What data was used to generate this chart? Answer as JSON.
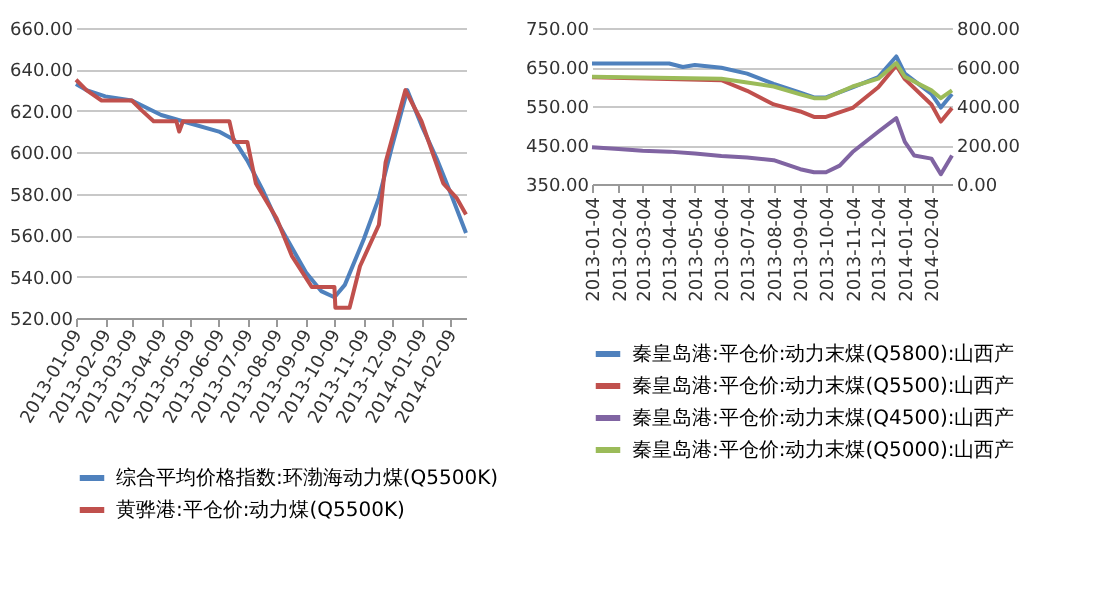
{
  "chart_data": [
    {
      "type": "line",
      "xlim": [
        "2013-01-09",
        "2014-02-25"
      ],
      "xticks": [
        "2013-01-09",
        "2013-02-09",
        "2013-03-09",
        "2013-04-09",
        "2013-05-09",
        "2013-06-09",
        "2013-07-09",
        "2013-08-09",
        "2013-09-09",
        "2013-10-09",
        "2013-11-09",
        "2013-12-09",
        "2014-01-09",
        "2014-02-09"
      ],
      "ylim": [
        520,
        660
      ],
      "yticks": [
        {
          "value": 520,
          "label": "520.00"
        },
        {
          "value": 540,
          "label": "540.00"
        },
        {
          "value": 560,
          "label": "560.00"
        },
        {
          "value": 580,
          "label": "580.00"
        },
        {
          "value": 600,
          "label": "600.00"
        },
        {
          "value": 620,
          "label": "620.00"
        },
        {
          "value": 640,
          "label": "640.00"
        },
        {
          "value": 660,
          "label": "660.00"
        }
      ],
      "grid": "y",
      "legend": "bottom",
      "series": [
        {
          "name": "综合平均价格指数:环渤海动力煤(Q5500K)",
          "color": "#4f81bd",
          "x": [
            "2013-01-09",
            "2013-01-20",
            "2013-02-09",
            "2013-03-09",
            "2013-04-09",
            "2013-05-09",
            "2013-06-09",
            "2013-06-25",
            "2013-07-09",
            "2013-07-25",
            "2013-08-09",
            "2013-08-25",
            "2013-09-09",
            "2013-09-25",
            "2013-10-09",
            "2013-10-20",
            "2013-11-09",
            "2013-11-25",
            "2013-12-09",
            "2013-12-25",
            "2014-01-09",
            "2014-01-25",
            "2014-02-09",
            "2014-02-25"
          ],
          "values": [
            633,
            630,
            627,
            625,
            618,
            614,
            610,
            606,
            596,
            582,
            567,
            554,
            542,
            533,
            530,
            536,
            558,
            578,
            603,
            630,
            613,
            597,
            580,
            561
          ]
        },
        {
          "name": "黄骅港:平仓价:动力煤(Q5500K)",
          "color": "#c0504d",
          "x": [
            "2013-01-09",
            "2013-01-20",
            "2013-02-05",
            "2013-03-09",
            "2013-03-20",
            "2013-04-01",
            "2013-04-25",
            "2013-04-28",
            "2013-05-02",
            "2013-06-20",
            "2013-06-25",
            "2013-07-09",
            "2013-07-18",
            "2013-08-09",
            "2013-08-25",
            "2013-09-15",
            "2013-10-09",
            "2013-10-10",
            "2013-10-25",
            "2013-11-05",
            "2013-11-25",
            "2013-12-02",
            "2013-12-23",
            "2014-01-09",
            "2014-02-01",
            "2014-02-15",
            "2014-02-25"
          ],
          "values": [
            635,
            630,
            625,
            625,
            620,
            615,
            615,
            610,
            615,
            615,
            605,
            605,
            585,
            568,
            550,
            535,
            535,
            525,
            525,
            545,
            565,
            595,
            630,
            615,
            585,
            578,
            570
          ]
        }
      ]
    },
    {
      "type": "line",
      "xlim": [
        "2013-01-04",
        "2014-02-28"
      ],
      "xticks": [
        "2013-01-04",
        "2013-02-04",
        "2013-03-04",
        "2013-04-04",
        "2013-05-04",
        "2013-06-04",
        "2013-07-04",
        "2013-08-04",
        "2013-09-04",
        "2013-10-04",
        "2013-11-04",
        "2013-12-04",
        "2014-01-04",
        "2014-02-04"
      ],
      "ylim": [
        350,
        750
      ],
      "yticks": [
        {
          "value": 350,
          "label": "350.00"
        },
        {
          "value": 450,
          "label": "450.00"
        },
        {
          "value": 550,
          "label": "550.00"
        },
        {
          "value": 650,
          "label": "650.00"
        },
        {
          "value": 750,
          "label": "750.00"
        }
      ],
      "y2lim": [
        0,
        800
      ],
      "y2ticks": [
        {
          "value": 0,
          "label": "0.00"
        },
        {
          "value": 200,
          "label": "200.00"
        },
        {
          "value": 400,
          "label": "400.00"
        },
        {
          "value": 600,
          "label": "600.00"
        },
        {
          "value": 800,
          "label": "800.00"
        }
      ],
      "grid": "y",
      "legend": "bottom",
      "series": [
        {
          "name": "秦皇岛港:平仓价:动力末煤(Q5800):山西产",
          "color": "#4f81bd",
          "x": [
            "2013-01-04",
            "2013-04-04",
            "2013-04-20",
            "2013-05-04",
            "2013-06-04",
            "2013-07-04",
            "2013-08-04",
            "2013-09-04",
            "2013-09-20",
            "2013-10-04",
            "2013-11-04",
            "2013-12-04",
            "2013-12-25",
            "2014-01-04",
            "2014-02-04",
            "2014-02-15",
            "2014-02-28"
          ],
          "values": [
            659,
            659,
            650,
            655,
            648,
            633,
            607,
            584,
            572,
            572,
            598,
            624,
            677,
            633,
            581,
            546,
            581
          ]
        },
        {
          "name": "秦皇岛港:平仓价:动力末煤(Q5500):山西产",
          "color": "#c0504d",
          "x": [
            "2013-01-04",
            "2013-06-04",
            "2013-07-04",
            "2013-08-04",
            "2013-09-04",
            "2013-09-20",
            "2013-10-04",
            "2013-11-04",
            "2013-12-04",
            "2013-12-25",
            "2014-01-04",
            "2014-02-04",
            "2014-02-15",
            "2014-02-28"
          ],
          "values": [
            624,
            616,
            589,
            554,
            536,
            522,
            522,
            545,
            598,
            654,
            619,
            554,
            510,
            545
          ]
        },
        {
          "name": "秦皇岛港:平仓价:动力末煤(Q4500):山西产",
          "color": "#8064a2",
          "x": [
            "2013-01-04",
            "2013-02-04",
            "2013-03-04",
            "2013-04-04",
            "2013-05-04",
            "2013-06-04",
            "2013-07-04",
            "2013-08-04",
            "2013-09-04",
            "2013-09-20",
            "2013-10-04",
            "2013-10-20",
            "2013-11-04",
            "2013-12-04",
            "2013-12-25",
            "2014-01-04",
            "2014-01-15",
            "2014-02-04",
            "2014-02-15",
            "2014-02-28"
          ],
          "values": [
            444,
            440,
            435,
            433,
            428,
            422,
            418,
            411,
            388,
            380,
            380,
            397,
            432,
            484,
            519,
            458,
            423,
            415,
            375,
            423
          ]
        },
        {
          "name": "秦皇岛港:平仓价:动力末煤(Q5000):山西产",
          "color": "#9bbb59",
          "axis": "y2",
          "x": [
            "2013-01-04",
            "2013-06-04",
            "2013-07-04",
            "2013-08-04",
            "2013-09-04",
            "2013-09-20",
            "2013-10-04",
            "2013-11-04",
            "2013-12-04",
            "2013-12-25",
            "2014-01-04",
            "2014-02-04",
            "2014-02-15",
            "2014-02-28"
          ],
          "values": [
            550,
            540,
            520,
            500,
            460,
            440,
            440,
            500,
            540,
            620,
            550,
            480,
            440,
            480
          ]
        }
      ]
    }
  ]
}
